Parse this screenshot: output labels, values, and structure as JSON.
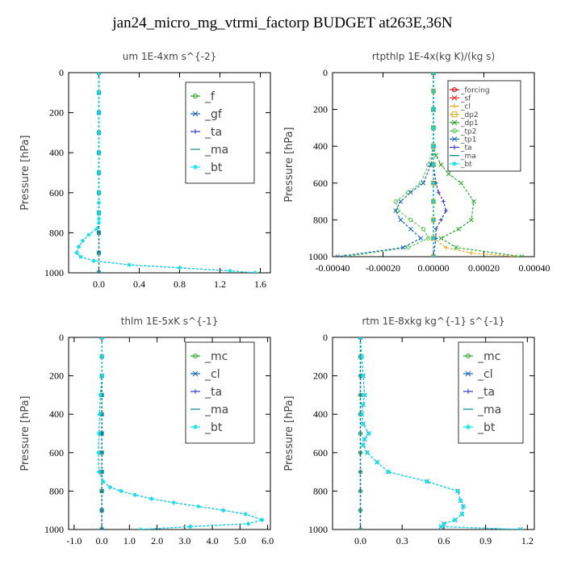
{
  "title": "jan24_micro_mg_vtrmi_factorp  BUDGET at263E,36N",
  "chart_data": [
    {
      "type": "line",
      "title": "um   1E-4xm s^{-2}",
      "ylabel": "Pressure [hPa]",
      "xlim": [
        -0.3,
        1.7
      ],
      "ylim": [
        1000,
        0
      ],
      "xticks": [
        0.0,
        0.4,
        0.8,
        1.2,
        1.6
      ],
      "xtick_labels": [
        "0.0",
        "0.4",
        "0.8",
        "1.2",
        "1.6"
      ],
      "yticks": [
        0,
        200,
        400,
        600,
        800,
        1000
      ],
      "ytick_labels": [
        "0",
        "200",
        "400",
        "600",
        "800",
        "1000"
      ],
      "legend": {
        "position": "top-right",
        "font": 14
      },
      "series": [
        {
          "name": "_f",
          "color": "#22aa22",
          "marker": "o",
          "x": [
            0,
            0,
            0,
            0,
            0,
            0,
            0,
            0,
            0,
            0,
            0
          ],
          "y": [
            0,
            100,
            200,
            300,
            400,
            500,
            600,
            700,
            800,
            900,
            1000
          ]
        },
        {
          "name": "_gf",
          "color": "#1565c0",
          "marker": "x",
          "x": [
            0,
            0,
            0,
            0,
            0,
            0,
            0,
            0,
            0,
            0,
            0
          ],
          "y": [
            0,
            100,
            200,
            300,
            400,
            500,
            600,
            700,
            800,
            900,
            1000
          ]
        },
        {
          "name": "_ta",
          "color": "#3333cc",
          "marker": "+",
          "x": [
            0,
            0,
            0,
            0,
            0,
            0,
            0,
            0,
            0,
            0,
            0,
            -0.02,
            -0.1,
            -0.16,
            -0.2,
            -0.22,
            -0.18,
            -0.05,
            0.3,
            0.8,
            1.3,
            1.55
          ],
          "y": [
            0,
            100,
            200,
            300,
            400,
            500,
            600,
            650,
            700,
            730,
            750,
            780,
            810,
            840,
            870,
            900,
            920,
            940,
            960,
            975,
            990,
            1000
          ]
        },
        {
          "name": "_ma",
          "color": "#008b8b",
          "marker": "-",
          "x": [
            0,
            0,
            0,
            0,
            0,
            0,
            0,
            0,
            0,
            0,
            0
          ],
          "y": [
            0,
            100,
            200,
            300,
            400,
            500,
            600,
            700,
            800,
            900,
            1000
          ]
        },
        {
          "name": "_bt",
          "color": "#00e5ee",
          "marker": "*",
          "x": [
            0,
            0,
            0,
            0,
            0,
            0,
            0,
            0,
            0,
            0,
            0,
            -0.02,
            -0.1,
            -0.16,
            -0.2,
            -0.22,
            -0.18,
            -0.05,
            0.3,
            0.8,
            1.3,
            1.55
          ],
          "y": [
            0,
            100,
            200,
            300,
            400,
            500,
            600,
            650,
            700,
            730,
            750,
            780,
            810,
            840,
            870,
            900,
            920,
            940,
            960,
            975,
            990,
            1000
          ]
        }
      ]
    },
    {
      "type": "line",
      "title": "rtpthlp   1E-4x(kg K)/(kg s)",
      "ylabel": "Pressure [hPa]",
      "xlim": [
        -0.0004,
        0.0004
      ],
      "ylim": [
        1000,
        0
      ],
      "xticks": [
        -0.0004,
        -0.0002,
        0.0,
        0.0002,
        0.0004
      ],
      "xtick_labels": [
        "-0.00040",
        "-0.00020",
        "0.00000",
        "0.00020",
        "0.00040"
      ],
      "yticks": [
        0,
        200,
        400,
        600,
        800,
        1000
      ],
      "ytick_labels": [
        "0",
        "200",
        "400",
        "600",
        "800",
        "1000"
      ],
      "legend": {
        "position": "top-right",
        "font": 9
      },
      "series": [
        {
          "name": "_forcing",
          "color": "#cc0000",
          "marker": "o",
          "x": [
            0,
            0,
            0,
            0,
            0,
            0,
            0,
            0,
            0,
            0,
            0
          ],
          "y": [
            0,
            100,
            200,
            300,
            400,
            500,
            600,
            700,
            800,
            900,
            1000
          ]
        },
        {
          "name": "_sf",
          "color": "#ff2222",
          "marker": "x",
          "x": [
            0,
            0,
            0,
            0,
            0,
            0,
            0,
            0,
            0,
            0,
            0
          ],
          "y": [
            0,
            100,
            200,
            300,
            400,
            500,
            600,
            700,
            800,
            900,
            1000
          ]
        },
        {
          "name": "_cl",
          "color": "#e6a817",
          "marker": "+",
          "x": [
            0,
            0,
            0,
            0,
            0,
            0,
            0,
            0,
            0,
            0,
            5e-05,
            0.00015,
            0.00033
          ],
          "y": [
            0,
            100,
            200,
            300,
            400,
            500,
            600,
            700,
            800,
            900,
            950,
            980,
            1000
          ]
        },
        {
          "name": "_dp2",
          "color": "#d4b020",
          "marker": "s",
          "x": [
            0,
            0,
            0,
            0,
            0,
            0,
            0,
            0,
            0,
            0,
            0
          ],
          "y": [
            0,
            100,
            200,
            300,
            400,
            500,
            600,
            700,
            800,
            900,
            1000
          ]
        },
        {
          "name": "_dp1",
          "color": "#22aa22",
          "marker": "x",
          "x": [
            0,
            0,
            0,
            0,
            1e-05,
            3e-05,
            6e-05,
            0.00011,
            0.00016,
            0.00015,
            0.0001,
            3e-05,
            9e-05,
            0.00035
          ],
          "y": [
            0,
            200,
            300,
            400,
            450,
            500,
            550,
            600,
            700,
            800,
            850,
            900,
            950,
            1000
          ]
        },
        {
          "name": "_tp2",
          "color": "#55cc55",
          "marker": "o",
          "x": [
            0,
            0,
            0,
            0,
            -2e-05,
            -5e-05,
            -0.0001,
            -0.00015,
            -0.00014,
            -9e-05,
            -4e-05,
            -2e-05,
            -0.0001,
            -0.00035
          ],
          "y": [
            0,
            200,
            300,
            400,
            500,
            600,
            650,
            700,
            750,
            800,
            850,
            900,
            950,
            1000
          ]
        },
        {
          "name": "_tp1",
          "color": "#1565c0",
          "marker": "x",
          "x": [
            0,
            0,
            0,
            -1e-05,
            -4e-05,
            -9e-05,
            -0.00013,
            -0.00015,
            -0.00013,
            -9e-05,
            -5e-05,
            -0.00012,
            -0.00038
          ],
          "y": [
            0,
            200,
            400,
            500,
            600,
            650,
            700,
            750,
            800,
            850,
            900,
            950,
            1000
          ]
        },
        {
          "name": "_ta",
          "color": "#3333cc",
          "marker": "+",
          "x": [
            0,
            0,
            0,
            0,
            1e-05,
            2e-05,
            4e-05,
            5e-05,
            3e-05,
            1e-05,
            1e-05,
            0
          ],
          "y": [
            0,
            200,
            400,
            500,
            600,
            650,
            700,
            750,
            800,
            850,
            900,
            1000
          ]
        },
        {
          "name": "_ma",
          "color": "#008b8b",
          "marker": "-",
          "x": [
            0,
            0,
            0,
            0,
            0,
            0,
            0,
            0,
            0,
            0,
            0
          ],
          "y": [
            0,
            100,
            200,
            300,
            400,
            500,
            600,
            700,
            800,
            900,
            1000
          ]
        },
        {
          "name": "_bt",
          "color": "#00e5ee",
          "marker": "*",
          "x": [
            0,
            0,
            0,
            0,
            0,
            0,
            0,
            0,
            0,
            0,
            0
          ],
          "y": [
            0,
            100,
            200,
            300,
            400,
            500,
            600,
            700,
            800,
            900,
            1000
          ]
        }
      ]
    },
    {
      "type": "line",
      "title": "thlm   1E-5xK s^{-1}",
      "ylabel": "Pressure [hPa]",
      "xlim": [
        -1.2,
        6.1
      ],
      "ylim": [
        1000,
        0
      ],
      "xticks": [
        -1.0,
        0.0,
        1.0,
        2.0,
        3.0,
        4.0,
        5.0,
        6.0
      ],
      "xtick_labels": [
        "-1.0",
        "0.0",
        "1.0",
        "2.0",
        "3.0",
        "4.0",
        "5.0",
        "6.0"
      ],
      "yticks": [
        0,
        200,
        400,
        600,
        800,
        1000
      ],
      "ytick_labels": [
        "0",
        "200",
        "400",
        "600",
        "800",
        "1000"
      ],
      "legend": {
        "position": "top-right",
        "font": 14
      },
      "series": [
        {
          "name": "_mc",
          "color": "#22aa22",
          "marker": "o",
          "x": [
            0,
            0,
            0,
            0,
            0,
            0,
            0,
            0,
            0,
            0,
            0
          ],
          "y": [
            0,
            100,
            200,
            300,
            400,
            500,
            600,
            700,
            800,
            900,
            1000
          ]
        },
        {
          "name": "_cl",
          "color": "#1565c0",
          "marker": "x",
          "x": [
            0,
            0,
            0,
            0,
            0,
            0,
            0,
            0,
            0,
            0,
            0
          ],
          "y": [
            0,
            100,
            200,
            300,
            400,
            500,
            600,
            700,
            800,
            900,
            1000
          ]
        },
        {
          "name": "_ta",
          "color": "#3333cc",
          "marker": "+",
          "x": [
            0,
            0,
            0,
            -0.05,
            -0.08,
            -0.1,
            -0.12,
            -0.1,
            0.05,
            0.3,
            0.7,
            1.2,
            1.8,
            2.6,
            3.5,
            4.4,
            5.2,
            5.8,
            5.3,
            3.2,
            1.4
          ],
          "y": [
            0,
            100,
            200,
            300,
            400,
            500,
            600,
            700,
            750,
            780,
            800,
            820,
            840,
            860,
            880,
            900,
            920,
            950,
            970,
            985,
            1000
          ]
        },
        {
          "name": "_ma",
          "color": "#008b8b",
          "marker": "-",
          "x": [
            0,
            0,
            0,
            0,
            0,
            0,
            0,
            0,
            0,
            0,
            0
          ],
          "y": [
            0,
            100,
            200,
            300,
            400,
            500,
            600,
            700,
            800,
            900,
            1000
          ]
        },
        {
          "name": "_bt",
          "color": "#00e5ee",
          "marker": "*",
          "x": [
            0,
            0,
            0,
            -0.05,
            -0.08,
            -0.1,
            -0.12,
            -0.1,
            0.05,
            0.3,
            0.7,
            1.2,
            1.8,
            2.6,
            3.5,
            4.4,
            5.2,
            5.8,
            5.3,
            3.2,
            1.4
          ],
          "y": [
            0,
            100,
            200,
            300,
            400,
            500,
            600,
            700,
            750,
            780,
            800,
            820,
            840,
            860,
            880,
            900,
            920,
            950,
            970,
            985,
            1000
          ]
        }
      ]
    },
    {
      "type": "line",
      "title": "rtm   1E-8xkg kg^{-1} s^{-1}",
      "ylabel": "Pressure [hPa]",
      "xlim": [
        -0.2,
        1.25
      ],
      "ylim": [
        1000,
        0
      ],
      "xticks": [
        0.0,
        0.3,
        0.6,
        0.9,
        1.2
      ],
      "xtick_labels": [
        "0.0",
        "0.3",
        "0.6",
        "0.9",
        "1.2"
      ],
      "yticks": [
        0,
        200,
        400,
        600,
        800,
        1000
      ],
      "ytick_labels": [
        "0",
        "200",
        "400",
        "600",
        "800",
        "1000"
      ],
      "legend": {
        "position": "top-right",
        "font": 14
      },
      "series": [
        {
          "name": "_mc",
          "color": "#22aa22",
          "marker": "o",
          "x": [
            0,
            0,
            0,
            0,
            0,
            0,
            0,
            0,
            0,
            0,
            0
          ],
          "y": [
            0,
            100,
            200,
            300,
            400,
            500,
            600,
            700,
            800,
            900,
            1000
          ]
        },
        {
          "name": "_cl",
          "color": "#1565c0",
          "marker": "x",
          "x": [
            0,
            0.01,
            0.02,
            0.03,
            0.02,
            0.01,
            0.02,
            0.06,
            0.03,
            0.02,
            0.05,
            0.12,
            0.2,
            0.48,
            0.7,
            0.72,
            0.74,
            0.73,
            0.68,
            0.6,
            0.58,
            1.15
          ],
          "y": [
            0,
            100,
            200,
            300,
            350,
            400,
            450,
            500,
            530,
            560,
            600,
            650,
            700,
            750,
            800,
            850,
            880,
            920,
            950,
            970,
            985,
            1000
          ]
        },
        {
          "name": "_ta",
          "color": "#3333cc",
          "marker": "+",
          "x": [
            0,
            0,
            0,
            0,
            0,
            0,
            0,
            0,
            0,
            0,
            0
          ],
          "y": [
            0,
            100,
            200,
            300,
            400,
            500,
            600,
            700,
            800,
            900,
            1000
          ]
        },
        {
          "name": "_ma",
          "color": "#008b8b",
          "marker": "-",
          "x": [
            0,
            0,
            0,
            0,
            0,
            0,
            0,
            0,
            0,
            0,
            0
          ],
          "y": [
            0,
            100,
            200,
            300,
            400,
            500,
            600,
            700,
            800,
            900,
            1000
          ]
        },
        {
          "name": "_bt",
          "color": "#00e5ee",
          "marker": "*",
          "x": [
            0,
            0.01,
            0.02,
            0.03,
            0.02,
            0.01,
            0.02,
            0.06,
            0.03,
            0.02,
            0.05,
            0.12,
            0.2,
            0.48,
            0.7,
            0.72,
            0.74,
            0.73,
            0.68,
            0.6,
            0.58,
            1.15
          ],
          "y": [
            0,
            100,
            200,
            300,
            350,
            400,
            450,
            500,
            530,
            560,
            600,
            650,
            700,
            750,
            800,
            850,
            880,
            920,
            950,
            970,
            985,
            1000
          ]
        }
      ]
    }
  ]
}
